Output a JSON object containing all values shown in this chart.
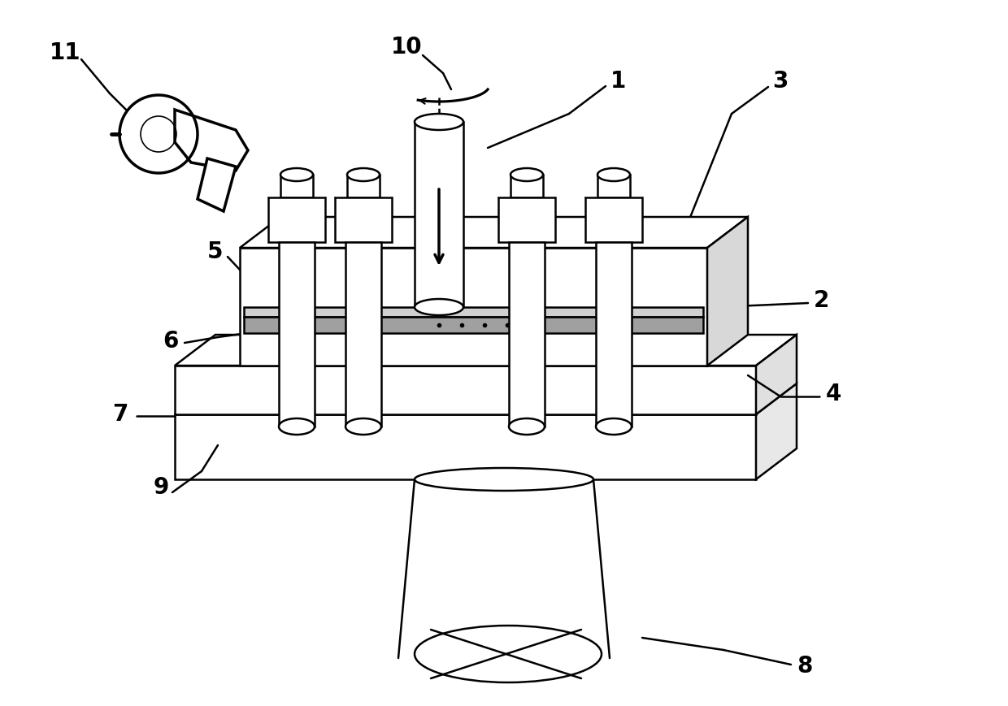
{
  "bg_color": "#ffffff",
  "lc": "#000000",
  "lw": 1.8,
  "blw": 2.5,
  "fs": 20,
  "fw": "bold"
}
